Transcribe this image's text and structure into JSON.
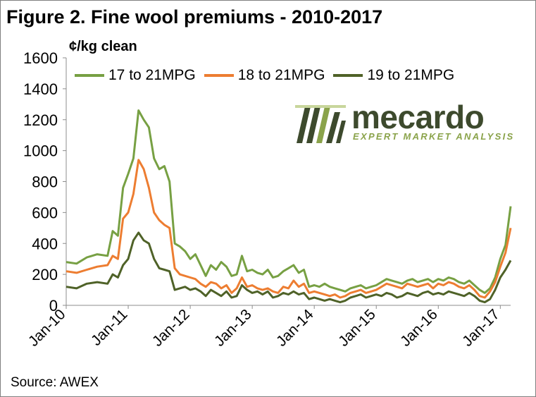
{
  "header": {
    "title": "Figure 2. Fine wool premiums - 2010-2017",
    "unit": "¢/kg clean"
  },
  "footer": {
    "source": "Source: AWEX"
  },
  "logo": {
    "word": "mecardo",
    "tagline": "EXPERT MARKET ANALYSIS",
    "icon": "bar-stripes-icon"
  },
  "colors": {
    "green_light": "#77a043",
    "orange": "#ed7d31",
    "green_dark": "#4f6228"
  },
  "chart_data": {
    "type": "line",
    "title": "Figure 2. Fine wool premiums - 2010-2017",
    "ylabel": "¢/kg clean",
    "xlabel": "",
    "ylim": [
      0,
      1600
    ],
    "xlim": [
      "2010-01",
      "2017-03"
    ],
    "yticks": [
      "0",
      "200",
      "400",
      "600",
      "800",
      "1000",
      "1200",
      "1400",
      "1600"
    ],
    "xticks": [
      "Jan-10",
      "Jan-11",
      "Jan-12",
      "Jan-13",
      "Jan-14",
      "Jan-15",
      "Jan-16",
      "Jan-17"
    ],
    "grid": false,
    "legend": "top",
    "series": [
      {
        "name": "17 to 21MPG",
        "color": "#77a043",
        "points": [
          [
            "2010-01",
            280
          ],
          [
            "2010-03",
            270
          ],
          [
            "2010-05",
            310
          ],
          [
            "2010-07",
            330
          ],
          [
            "2010-09",
            320
          ],
          [
            "2010-10",
            480
          ],
          [
            "2010-11",
            450
          ],
          [
            "2010-12",
            760
          ],
          [
            "2011-01",
            850
          ],
          [
            "2011-02",
            950
          ],
          [
            "2011-03",
            1260
          ],
          [
            "2011-04",
            1200
          ],
          [
            "2011-05",
            1150
          ],
          [
            "2011-06",
            950
          ],
          [
            "2011-07",
            880
          ],
          [
            "2011-08",
            900
          ],
          [
            "2011-09",
            800
          ],
          [
            "2011-10",
            400
          ],
          [
            "2011-11",
            380
          ],
          [
            "2011-12",
            350
          ],
          [
            "2012-01",
            300
          ],
          [
            "2012-02",
            330
          ],
          [
            "2012-03",
            260
          ],
          [
            "2012-04",
            190
          ],
          [
            "2012-05",
            260
          ],
          [
            "2012-06",
            230
          ],
          [
            "2012-07",
            280
          ],
          [
            "2012-08",
            250
          ],
          [
            "2012-09",
            190
          ],
          [
            "2012-10",
            200
          ],
          [
            "2012-11",
            320
          ],
          [
            "2012-12",
            220
          ],
          [
            "2013-01",
            230
          ],
          [
            "2013-02",
            210
          ],
          [
            "2013-03",
            200
          ],
          [
            "2013-04",
            230
          ],
          [
            "2013-05",
            180
          ],
          [
            "2013-06",
            190
          ],
          [
            "2013-07",
            220
          ],
          [
            "2013-08",
            240
          ],
          [
            "2013-09",
            260
          ],
          [
            "2013-10",
            210
          ],
          [
            "2013-11",
            230
          ],
          [
            "2013-12",
            120
          ],
          [
            "2014-01",
            130
          ],
          [
            "2014-02",
            120
          ],
          [
            "2014-03",
            140
          ],
          [
            "2014-04",
            120
          ],
          [
            "2014-05",
            110
          ],
          [
            "2014-06",
            100
          ],
          [
            "2014-07",
            90
          ],
          [
            "2014-08",
            110
          ],
          [
            "2014-09",
            120
          ],
          [
            "2014-10",
            130
          ],
          [
            "2014-11",
            110
          ],
          [
            "2014-12",
            120
          ],
          [
            "2015-01",
            130
          ],
          [
            "2015-02",
            150
          ],
          [
            "2015-03",
            170
          ],
          [
            "2015-04",
            160
          ],
          [
            "2015-05",
            150
          ],
          [
            "2015-06",
            140
          ],
          [
            "2015-07",
            160
          ],
          [
            "2015-08",
            170
          ],
          [
            "2015-09",
            150
          ],
          [
            "2015-10",
            160
          ],
          [
            "2015-11",
            170
          ],
          [
            "2015-12",
            150
          ],
          [
            "2016-01",
            170
          ],
          [
            "2016-02",
            160
          ],
          [
            "2016-03",
            180
          ],
          [
            "2016-04",
            170
          ],
          [
            "2016-05",
            150
          ],
          [
            "2016-06",
            140
          ],
          [
            "2016-07",
            160
          ],
          [
            "2016-08",
            130
          ],
          [
            "2016-09",
            100
          ],
          [
            "2016-10",
            80
          ],
          [
            "2016-11",
            110
          ],
          [
            "2016-12",
            180
          ],
          [
            "2017-01",
            300
          ],
          [
            "2017-02",
            390
          ],
          [
            "2017-03",
            640
          ]
        ]
      },
      {
        "name": "18 to 21MPG",
        "color": "#ed7d31",
        "points": [
          [
            "2010-01",
            220
          ],
          [
            "2010-03",
            210
          ],
          [
            "2010-05",
            230
          ],
          [
            "2010-07",
            250
          ],
          [
            "2010-09",
            260
          ],
          [
            "2010-10",
            320
          ],
          [
            "2010-11",
            300
          ],
          [
            "2010-12",
            560
          ],
          [
            "2011-01",
            600
          ],
          [
            "2011-02",
            720
          ],
          [
            "2011-03",
            940
          ],
          [
            "2011-04",
            880
          ],
          [
            "2011-05",
            760
          ],
          [
            "2011-06",
            600
          ],
          [
            "2011-07",
            550
          ],
          [
            "2011-08",
            520
          ],
          [
            "2011-09",
            500
          ],
          [
            "2011-10",
            240
          ],
          [
            "2011-11",
            200
          ],
          [
            "2011-12",
            190
          ],
          [
            "2012-01",
            180
          ],
          [
            "2012-02",
            170
          ],
          [
            "2012-03",
            140
          ],
          [
            "2012-04",
            120
          ],
          [
            "2012-05",
            150
          ],
          [
            "2012-06",
            140
          ],
          [
            "2012-07",
            110
          ],
          [
            "2012-08",
            130
          ],
          [
            "2012-09",
            80
          ],
          [
            "2012-10",
            110
          ],
          [
            "2012-11",
            180
          ],
          [
            "2012-12",
            120
          ],
          [
            "2013-01",
            130
          ],
          [
            "2013-02",
            110
          ],
          [
            "2013-03",
            100
          ],
          [
            "2013-04",
            110
          ],
          [
            "2013-05",
            90
          ],
          [
            "2013-06",
            80
          ],
          [
            "2013-07",
            120
          ],
          [
            "2013-08",
            110
          ],
          [
            "2013-09",
            160
          ],
          [
            "2013-10",
            120
          ],
          [
            "2013-11",
            140
          ],
          [
            "2013-12",
            80
          ],
          [
            "2014-01",
            90
          ],
          [
            "2014-02",
            80
          ],
          [
            "2014-03",
            70
          ],
          [
            "2014-04",
            60
          ],
          [
            "2014-05",
            70
          ],
          [
            "2014-06",
            50
          ],
          [
            "2014-07",
            60
          ],
          [
            "2014-08",
            80
          ],
          [
            "2014-09",
            90
          ],
          [
            "2014-10",
            100
          ],
          [
            "2014-11",
            80
          ],
          [
            "2014-12",
            90
          ],
          [
            "2015-01",
            100
          ],
          [
            "2015-02",
            120
          ],
          [
            "2015-03",
            140
          ],
          [
            "2015-04",
            130
          ],
          [
            "2015-05",
            120
          ],
          [
            "2015-06",
            110
          ],
          [
            "2015-07",
            140
          ],
          [
            "2015-08",
            130
          ],
          [
            "2015-09",
            120
          ],
          [
            "2015-10",
            130
          ],
          [
            "2015-11",
            140
          ],
          [
            "2015-12",
            110
          ],
          [
            "2016-01",
            140
          ],
          [
            "2016-02",
            130
          ],
          [
            "2016-03",
            150
          ],
          [
            "2016-04",
            140
          ],
          [
            "2016-05",
            120
          ],
          [
            "2016-06",
            110
          ],
          [
            "2016-07",
            130
          ],
          [
            "2016-08",
            100
          ],
          [
            "2016-09",
            60
          ],
          [
            "2016-10",
            50
          ],
          [
            "2016-11",
            90
          ],
          [
            "2016-12",
            150
          ],
          [
            "2017-01",
            250
          ],
          [
            "2017-02",
            340
          ],
          [
            "2017-03",
            500
          ]
        ]
      },
      {
        "name": "19 to 21MPG",
        "color": "#4f6228",
        "points": [
          [
            "2010-01",
            120
          ],
          [
            "2010-03",
            110
          ],
          [
            "2010-05",
            140
          ],
          [
            "2010-07",
            150
          ],
          [
            "2010-09",
            140
          ],
          [
            "2010-10",
            200
          ],
          [
            "2010-11",
            180
          ],
          [
            "2010-12",
            260
          ],
          [
            "2011-01",
            300
          ],
          [
            "2011-02",
            420
          ],
          [
            "2011-03",
            470
          ],
          [
            "2011-04",
            420
          ],
          [
            "2011-05",
            400
          ],
          [
            "2011-06",
            300
          ],
          [
            "2011-07",
            240
          ],
          [
            "2011-08",
            230
          ],
          [
            "2011-09",
            220
          ],
          [
            "2011-10",
            100
          ],
          [
            "2011-11",
            110
          ],
          [
            "2011-12",
            120
          ],
          [
            "2012-01",
            100
          ],
          [
            "2012-02",
            110
          ],
          [
            "2012-03",
            90
          ],
          [
            "2012-04",
            60
          ],
          [
            "2012-05",
            100
          ],
          [
            "2012-06",
            80
          ],
          [
            "2012-07",
            60
          ],
          [
            "2012-08",
            90
          ],
          [
            "2012-09",
            50
          ],
          [
            "2012-10",
            60
          ],
          [
            "2012-11",
            130
          ],
          [
            "2012-12",
            100
          ],
          [
            "2013-01",
            80
          ],
          [
            "2013-02",
            90
          ],
          [
            "2013-03",
            70
          ],
          [
            "2013-04",
            90
          ],
          [
            "2013-05",
            50
          ],
          [
            "2013-06",
            60
          ],
          [
            "2013-07",
            80
          ],
          [
            "2013-08",
            70
          ],
          [
            "2013-09",
            90
          ],
          [
            "2013-10",
            70
          ],
          [
            "2013-11",
            80
          ],
          [
            "2013-12",
            40
          ],
          [
            "2014-01",
            50
          ],
          [
            "2014-02",
            40
          ],
          [
            "2014-03",
            30
          ],
          [
            "2014-04",
            40
          ],
          [
            "2014-05",
            30
          ],
          [
            "2014-06",
            20
          ],
          [
            "2014-07",
            30
          ],
          [
            "2014-08",
            50
          ],
          [
            "2014-09",
            60
          ],
          [
            "2014-10",
            70
          ],
          [
            "2014-11",
            50
          ],
          [
            "2014-12",
            60
          ],
          [
            "2015-01",
            70
          ],
          [
            "2015-02",
            60
          ],
          [
            "2015-03",
            80
          ],
          [
            "2015-04",
            70
          ],
          [
            "2015-05",
            50
          ],
          [
            "2015-06",
            60
          ],
          [
            "2015-07",
            80
          ],
          [
            "2015-08",
            70
          ],
          [
            "2015-09",
            60
          ],
          [
            "2015-10",
            80
          ],
          [
            "2015-11",
            90
          ],
          [
            "2015-12",
            70
          ],
          [
            "2016-01",
            80
          ],
          [
            "2016-02",
            70
          ],
          [
            "2016-03",
            90
          ],
          [
            "2016-04",
            80
          ],
          [
            "2016-05",
            70
          ],
          [
            "2016-06",
            60
          ],
          [
            "2016-07",
            80
          ],
          [
            "2016-08",
            60
          ],
          [
            "2016-09",
            30
          ],
          [
            "2016-10",
            20
          ],
          [
            "2016-11",
            40
          ],
          [
            "2016-12",
            100
          ],
          [
            "2017-01",
            180
          ],
          [
            "2017-02",
            230
          ],
          [
            "2017-03",
            290
          ]
        ]
      }
    ]
  }
}
